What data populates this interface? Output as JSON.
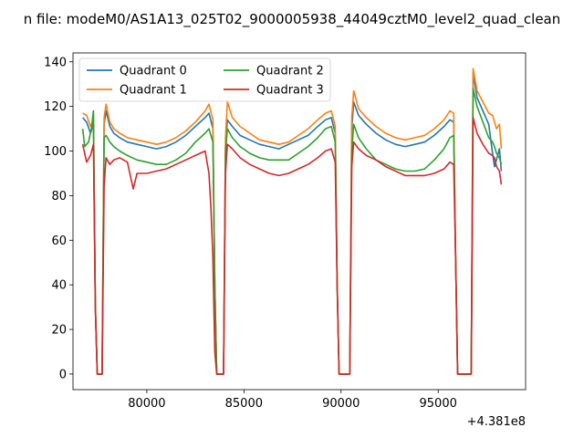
{
  "chart_data": {
    "type": "line",
    "title": "n file: modeM0/AS1A13_025T02_9000005938_44049cztM0_level2_quad_clean",
    "xlabel": "",
    "ylabel": "",
    "offset_label": "+4.381e8",
    "xlim": [
      76200,
      99500
    ],
    "ylim": [
      -7,
      144
    ],
    "x_ticks": [
      80000,
      85000,
      90000,
      95000
    ],
    "x_tick_labels": [
      "80000",
      "85000",
      "90000",
      "95000"
    ],
    "y_ticks": [
      0,
      20,
      40,
      60,
      80,
      100,
      120,
      140
    ],
    "y_tick_labels": [
      "0",
      "20",
      "40",
      "60",
      "80",
      "100",
      "120",
      "140"
    ],
    "grid": false,
    "legend_position": "top-left",
    "legend_columns": 2,
    "series": [
      {
        "name": "Quadrant 0",
        "color": "#1f77b4",
        "points": [
          [
            76700,
            115
          ],
          [
            76900,
            113
          ],
          [
            77100,
            108
          ],
          [
            77250,
            112
          ],
          [
            77350,
            30
          ],
          [
            77450,
            0
          ],
          [
            77700,
            0
          ],
          [
            77800,
            112
          ],
          [
            77900,
            118
          ],
          [
            78100,
            111
          ],
          [
            78300,
            108
          ],
          [
            78600,
            106
          ],
          [
            79000,
            104
          ],
          [
            79500,
            103
          ],
          [
            80000,
            102
          ],
          [
            80500,
            101
          ],
          [
            81000,
            102
          ],
          [
            81500,
            104
          ],
          [
            82000,
            107
          ],
          [
            82500,
            111
          ],
          [
            83000,
            115
          ],
          [
            83200,
            117
          ],
          [
            83400,
            110
          ],
          [
            83500,
            40
          ],
          [
            83600,
            0
          ],
          [
            83950,
            0
          ],
          [
            84050,
            102
          ],
          [
            84150,
            114
          ],
          [
            84400,
            111
          ],
          [
            84800,
            107
          ],
          [
            85300,
            105
          ],
          [
            85800,
            103
          ],
          [
            86300,
            102
          ],
          [
            86800,
            101
          ],
          [
            87300,
            103
          ],
          [
            87800,
            105
          ],
          [
            88300,
            107
          ],
          [
            88800,
            111
          ],
          [
            89200,
            114
          ],
          [
            89500,
            115
          ],
          [
            89700,
            108
          ],
          [
            89800,
            40
          ],
          [
            89900,
            0
          ],
          [
            90450,
            0
          ],
          [
            90550,
            110
          ],
          [
            90650,
            122
          ],
          [
            90900,
            116
          ],
          [
            91300,
            112
          ],
          [
            91800,
            108
          ],
          [
            92300,
            105
          ],
          [
            92800,
            103
          ],
          [
            93300,
            102
          ],
          [
            93800,
            103
          ],
          [
            94300,
            104
          ],
          [
            94800,
            107
          ],
          [
            95300,
            111
          ],
          [
            95600,
            114
          ],
          [
            95800,
            113
          ],
          [
            95900,
            50
          ],
          [
            96000,
            0
          ],
          [
            96700,
            0
          ],
          [
            96800,
            135
          ],
          [
            97000,
            124
          ],
          [
            97300,
            118
          ],
          [
            97600,
            112
          ],
          [
            97800,
            99
          ],
          [
            97900,
            93
          ],
          [
            98000,
            96
          ],
          [
            98150,
            101
          ],
          [
            98250,
            91
          ]
        ]
      },
      {
        "name": "Quadrant 1",
        "color": "#ff7f0e",
        "points": [
          [
            76700,
            117
          ],
          [
            76900,
            116
          ],
          [
            77100,
            111
          ],
          [
            77250,
            114
          ],
          [
            77350,
            30
          ],
          [
            77450,
            0
          ],
          [
            77700,
            0
          ],
          [
            77800,
            115
          ],
          [
            77900,
            121
          ],
          [
            78100,
            113
          ],
          [
            78300,
            110
          ],
          [
            78600,
            108
          ],
          [
            79000,
            106
          ],
          [
            79500,
            105
          ],
          [
            80000,
            104
          ],
          [
            80500,
            103
          ],
          [
            81000,
            104
          ],
          [
            81500,
            106
          ],
          [
            82000,
            109
          ],
          [
            82500,
            113
          ],
          [
            83000,
            118
          ],
          [
            83200,
            121
          ],
          [
            83400,
            114
          ],
          [
            83500,
            40
          ],
          [
            83600,
            0
          ],
          [
            83950,
            0
          ],
          [
            84050,
            106
          ],
          [
            84150,
            122
          ],
          [
            84400,
            115
          ],
          [
            84800,
            111
          ],
          [
            85300,
            108
          ],
          [
            85800,
            105
          ],
          [
            86300,
            104
          ],
          [
            86800,
            103
          ],
          [
            87300,
            104
          ],
          [
            87800,
            107
          ],
          [
            88300,
            110
          ],
          [
            88800,
            114
          ],
          [
            89200,
            117
          ],
          [
            89500,
            118
          ],
          [
            89700,
            111
          ],
          [
            89800,
            40
          ],
          [
            89900,
            0
          ],
          [
            90450,
            0
          ],
          [
            90550,
            115
          ],
          [
            90650,
            127
          ],
          [
            90900,
            119
          ],
          [
            91300,
            115
          ],
          [
            91800,
            111
          ],
          [
            92300,
            108
          ],
          [
            92800,
            106
          ],
          [
            93300,
            105
          ],
          [
            93800,
            106
          ],
          [
            94300,
            107
          ],
          [
            94800,
            110
          ],
          [
            95300,
            114
          ],
          [
            95600,
            118
          ],
          [
            95800,
            117
          ],
          [
            95900,
            50
          ],
          [
            96000,
            0
          ],
          [
            96700,
            0
          ],
          [
            96800,
            137
          ],
          [
            97000,
            127
          ],
          [
            97300,
            122
          ],
          [
            97600,
            117
          ],
          [
            97800,
            116
          ],
          [
            97900,
            113
          ],
          [
            98000,
            110
          ],
          [
            98150,
            112
          ],
          [
            98250,
            101
          ]
        ]
      },
      {
        "name": "Quadrant 2",
        "color": "#2ca02c",
        "points": [
          [
            76700,
            110
          ],
          [
            76800,
            102
          ],
          [
            77000,
            104
          ],
          [
            77150,
            110
          ],
          [
            77250,
            118
          ],
          [
            77350,
            30
          ],
          [
            77450,
            0
          ],
          [
            77700,
            0
          ],
          [
            77800,
            106
          ],
          [
            77900,
            107
          ],
          [
            78100,
            104
          ],
          [
            78300,
            102
          ],
          [
            78600,
            100
          ],
          [
            79000,
            98
          ],
          [
            79500,
            96
          ],
          [
            80000,
            95
          ],
          [
            80500,
            94
          ],
          [
            81000,
            94
          ],
          [
            81500,
            96
          ],
          [
            82000,
            99
          ],
          [
            82500,
            104
          ],
          [
            83000,
            108
          ],
          [
            83200,
            110
          ],
          [
            83400,
            104
          ],
          [
            83500,
            40
          ],
          [
            83600,
            0
          ],
          [
            83950,
            0
          ],
          [
            84050,
            99
          ],
          [
            84150,
            110
          ],
          [
            84400,
            106
          ],
          [
            84800,
            102
          ],
          [
            85300,
            99
          ],
          [
            85800,
            97
          ],
          [
            86300,
            96
          ],
          [
            86800,
            96
          ],
          [
            87300,
            96
          ],
          [
            87800,
            99
          ],
          [
            88300,
            102
          ],
          [
            88800,
            106
          ],
          [
            89200,
            110
          ],
          [
            89500,
            111
          ],
          [
            89700,
            104
          ],
          [
            89800,
            40
          ],
          [
            89900,
            0
          ],
          [
            90450,
            0
          ],
          [
            90550,
            100
          ],
          [
            90650,
            112
          ],
          [
            90900,
            106
          ],
          [
            91300,
            101
          ],
          [
            91800,
            96
          ],
          [
            92300,
            94
          ],
          [
            92800,
            92
          ],
          [
            93300,
            91
          ],
          [
            93800,
            91
          ],
          [
            94300,
            92
          ],
          [
            94800,
            96
          ],
          [
            95300,
            101
          ],
          [
            95600,
            106
          ],
          [
            95800,
            107
          ],
          [
            95900,
            50
          ],
          [
            96000,
            0
          ],
          [
            96700,
            0
          ],
          [
            96800,
            128
          ],
          [
            97000,
            120
          ],
          [
            97300,
            113
          ],
          [
            97600,
            106
          ],
          [
            97800,
            104
          ],
          [
            97900,
            102
          ],
          [
            98000,
            99
          ],
          [
            98150,
            97
          ],
          [
            98250,
            94
          ]
        ]
      },
      {
        "name": "Quadrant 3",
        "color": "#d62728",
        "points": [
          [
            76700,
            103
          ],
          [
            76900,
            95
          ],
          [
            77100,
            98
          ],
          [
            77250,
            103
          ],
          [
            77350,
            30
          ],
          [
            77450,
            0
          ],
          [
            77700,
            0
          ],
          [
            77800,
            84
          ],
          [
            77900,
            97
          ],
          [
            78100,
            94
          ],
          [
            78300,
            96
          ],
          [
            78600,
            97
          ],
          [
            79000,
            95
          ],
          [
            79300,
            83
          ],
          [
            79500,
            90
          ],
          [
            80000,
            90
          ],
          [
            80500,
            91
          ],
          [
            81000,
            92
          ],
          [
            81500,
            94
          ],
          [
            82000,
            96
          ],
          [
            82500,
            98
          ],
          [
            83000,
            100
          ],
          [
            83200,
            90
          ],
          [
            83300,
            75
          ],
          [
            83400,
            52
          ],
          [
            83500,
            10
          ],
          [
            83600,
            0
          ],
          [
            83950,
            0
          ],
          [
            84050,
            90
          ],
          [
            84150,
            103
          ],
          [
            84400,
            101
          ],
          [
            84800,
            97
          ],
          [
            85300,
            94
          ],
          [
            85800,
            92
          ],
          [
            86300,
            90
          ],
          [
            86800,
            89
          ],
          [
            87300,
            90
          ],
          [
            87800,
            92
          ],
          [
            88300,
            94
          ],
          [
            88800,
            97
          ],
          [
            89200,
            100
          ],
          [
            89500,
            101
          ],
          [
            89700,
            95
          ],
          [
            89800,
            40
          ],
          [
            89900,
            0
          ],
          [
            90450,
            0
          ],
          [
            90550,
            93
          ],
          [
            90650,
            104
          ],
          [
            90900,
            101
          ],
          [
            91300,
            98
          ],
          [
            91800,
            96
          ],
          [
            92300,
            93
          ],
          [
            92800,
            91
          ],
          [
            93300,
            89
          ],
          [
            93800,
            89
          ],
          [
            94300,
            89
          ],
          [
            94800,
            90
          ],
          [
            95300,
            92
          ],
          [
            95600,
            95
          ],
          [
            95800,
            94
          ],
          [
            95900,
            50
          ],
          [
            96000,
            0
          ],
          [
            96700,
            0
          ],
          [
            96800,
            115
          ],
          [
            97000,
            108
          ],
          [
            97300,
            103
          ],
          [
            97600,
            99
          ],
          [
            97800,
            98
          ],
          [
            97900,
            97
          ],
          [
            98000,
            93
          ],
          [
            98150,
            91
          ],
          [
            98250,
            85
          ]
        ]
      }
    ]
  }
}
